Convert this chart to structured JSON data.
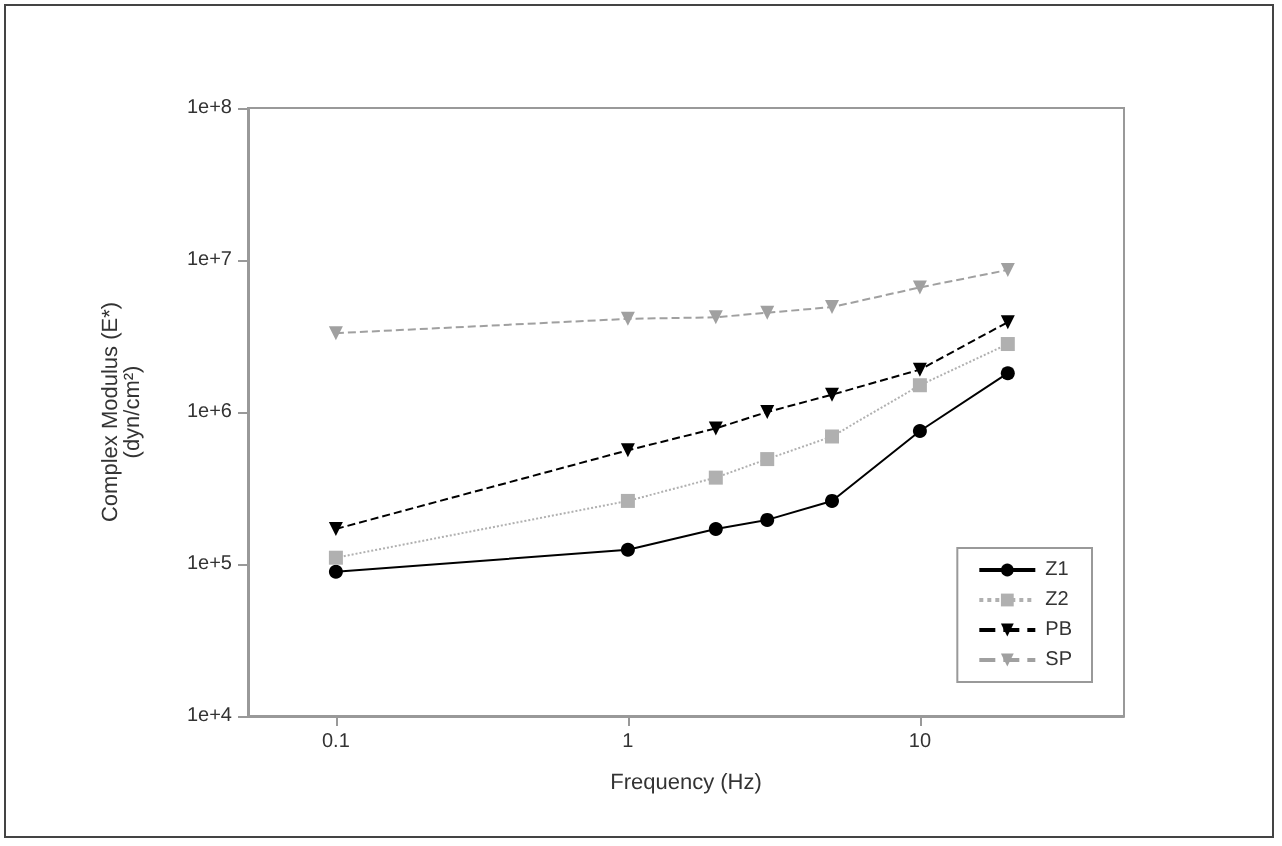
{
  "chart_data": {
    "type": "line",
    "xlabel": "Frequency (Hz)",
    "ylabel": "Complex Modulus (E*)\n(dyn/cm²)",
    "x": [
      0.1,
      1,
      2,
      3,
      5,
      10,
      20
    ],
    "series": [
      {
        "name": "Z1",
        "color": "#000000",
        "marker": "circle",
        "line_style": "solid",
        "values": [
          89000,
          124000,
          170000,
          195000,
          260000,
          750000,
          1800000
        ]
      },
      {
        "name": "Z2",
        "color": "#b0b0b0",
        "marker": "square",
        "line_style": "dotted",
        "values": [
          110000,
          260000,
          370000,
          490000,
          690000,
          1500000,
          2800000
        ]
      },
      {
        "name": "PB",
        "color": "#000000",
        "marker": "triangle",
        "line_style": "dashed",
        "values": [
          170000,
          560000,
          780000,
          1000000,
          1300000,
          1900000,
          3900000
        ]
      },
      {
        "name": "SP",
        "color": "#a0a0a0",
        "marker": "triangle",
        "line_style": "dashed",
        "values": [
          3300000,
          4100000,
          4200000,
          4500000,
          4900000,
          6600000,
          8600000
        ]
      }
    ],
    "log": "xy",
    "xlim": [
      0.05,
      50
    ],
    "xticks": [
      0.1,
      1,
      10
    ],
    "ylim": [
      10000,
      100000000
    ],
    "yticks": [
      {
        "value": 10000,
        "label": "1e+4"
      },
      {
        "value": 100000,
        "label": "1e+5"
      },
      {
        "value": 1000000,
        "label": "1e+6"
      },
      {
        "value": 10000000,
        "label": "1e+7"
      },
      {
        "value": 100000000,
        "label": "1e+8"
      }
    ],
    "grid": false,
    "legend": "bottom right"
  }
}
